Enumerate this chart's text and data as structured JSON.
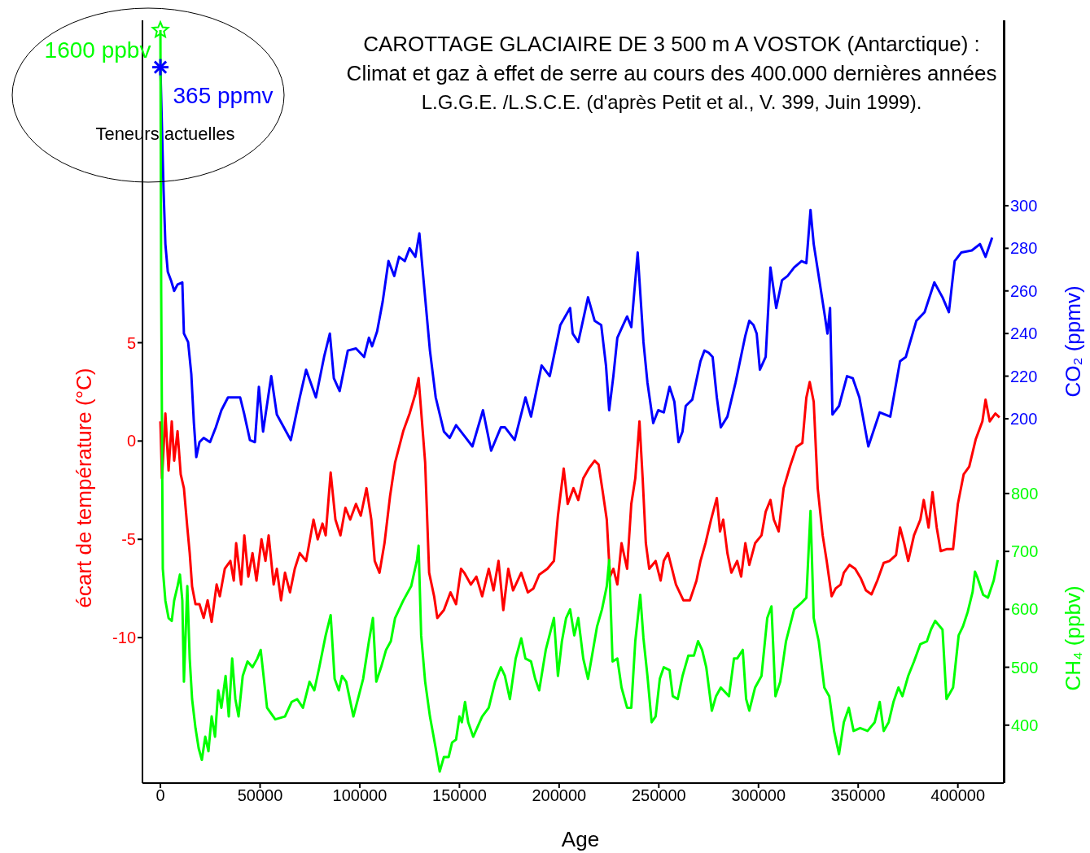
{
  "chart_data": {
    "type": "line",
    "title": "CAROTTAGE GLACIAIRE DE 3 500 m A VOSTOK (Antarctique) :\nClimat et gaz à effet de serre au cours des 400.000 dernières années",
    "subtitle": "L.G.G.E. /L.S.C.E. (d'après Petit et al., V. 399, Juin 1999).",
    "xlabel": "Age",
    "ylabel": "écart de température (°C)",
    "y2label": "CO₂ (ppmv)",
    "y3label": "CH₄ (ppbv)",
    "annotations": [
      "1600 ppbv",
      "365 ppmv",
      "Teneurs actuelles"
    ],
    "xlim": [
      -9000,
      423000
    ],
    "xticks": [
      0,
      50000,
      100000,
      150000,
      200000,
      250000,
      300000,
      350000,
      400000
    ],
    "ylim": [
      -17.4,
      21.4
    ],
    "yticks": [
      -10,
      -5,
      0,
      5
    ],
    "y2lim": [
      29,
      387
    ],
    "y2ticks": [
      200,
      220,
      240,
      260,
      280,
      300
    ],
    "y3lim": [
      300,
      1617
    ],
    "y3ticks": [
      400,
      500,
      600,
      700,
      800
    ],
    "series": [
      {
        "color": "#ff0000",
        "axis": "y",
        "x": [
          0,
          800,
          2500,
          4100,
          5700,
          6900,
          8600,
          10200,
          11800,
          13500,
          14700,
          15900,
          17600,
          19600,
          21700,
          23700,
          25700,
          28200,
          29800,
          32300,
          35100,
          36800,
          38000,
          40500,
          42100,
          44100,
          46200,
          48200,
          50700,
          52700,
          54300,
          56800,
          58400,
          60500,
          62500,
          65000,
          67400,
          69900,
          73100,
          76800,
          78900,
          81300,
          82900,
          85400,
          87800,
          90300,
          92800,
          95200,
          98100,
          100500,
          103400,
          105800,
          107500,
          109900,
          112400,
          115200,
          117700,
          121800,
          125000,
          127900,
          129500,
          131200,
          132800,
          134800,
          137300,
          138900,
          142200,
          145500,
          148300,
          150800,
          152400,
          155700,
          158500,
          161400,
          164700,
          167100,
          169600,
          172000,
          174500,
          176900,
          181000,
          184300,
          187100,
          190000,
          194100,
          197400,
          199400,
          202300,
          204300,
          207200,
          209600,
          212100,
          214900,
          217800,
          219800,
          221900,
          223900,
          225500,
          227200,
          229200,
          231300,
          234100,
          236200,
          238200,
          240300,
          241900,
          243500,
          245200,
          248400,
          250900,
          252500,
          254600,
          256600,
          258600,
          262300,
          265600,
          268900,
          270900,
          273400,
          276200,
          279100,
          280700,
          282300,
          284400,
          286400,
          289300,
          291300,
          293400,
          295400,
          298300,
          301500,
          303600,
          306000,
          307700,
          310100,
          312600,
          315800,
          319100,
          322000,
          324000,
          325700,
          327700,
          329700,
          332200,
          334200,
          336700,
          338700,
          341200,
          342800,
          345700,
          348500,
          351400,
          353900,
          356700,
          359600,
          362800,
          365700,
          369000,
          371000,
          373100,
          375100,
          378000,
          381200,
          382900,
          385300,
          387300,
          389400,
          391400,
          394300,
          397600,
          400000,
          402900,
          405700,
          409000,
          412300,
          413900,
          416000,
          418800,
          420900
        ],
        "values": [
          1.0,
          -1.9,
          1.4,
          -1.5,
          1.0,
          -1.0,
          0.5,
          -1.7,
          -2.4,
          -4.4,
          -5.7,
          -7.4,
          -8.3,
          -8.3,
          -9.0,
          -8.1,
          -9.2,
          -7.3,
          -7.9,
          -6.5,
          -6.1,
          -7.1,
          -5.2,
          -7.3,
          -4.8,
          -6.9,
          -5.7,
          -7.1,
          -5.0,
          -6.1,
          -4.8,
          -7.3,
          -6.5,
          -8.1,
          -6.7,
          -7.7,
          -6.5,
          -5.7,
          -6.1,
          -4.0,
          -5.0,
          -4.2,
          -4.8,
          -1.6,
          -4.0,
          -4.8,
          -3.4,
          -4.0,
          -3.2,
          -3.8,
          -2.4,
          -4.0,
          -6.1,
          -6.7,
          -5.2,
          -2.8,
          -1.1,
          0.5,
          1.4,
          2.4,
          3.2,
          1.0,
          -1.1,
          -6.7,
          -7.9,
          -9.0,
          -8.6,
          -7.7,
          -8.3,
          -6.5,
          -6.7,
          -7.3,
          -6.9,
          -7.9,
          -6.5,
          -7.6,
          -6.1,
          -8.6,
          -6.5,
          -7.6,
          -6.7,
          -7.7,
          -7.5,
          -6.8,
          -6.5,
          -6.1,
          -3.8,
          -1.4,
          -3.2,
          -2.4,
          -3.0,
          -1.9,
          -1.4,
          -1.0,
          -1.2,
          -2.6,
          -4.0,
          -6.9,
          -6.5,
          -7.3,
          -5.2,
          -6.5,
          -3.2,
          -1.9,
          1.0,
          -1.9,
          -5.2,
          -6.5,
          -6.1,
          -7.1,
          -6.1,
          -5.7,
          -6.5,
          -7.3,
          -8.1,
          -8.1,
          -7.1,
          -6.1,
          -5.2,
          -4.0,
          -2.9,
          -4.6,
          -4.0,
          -5.7,
          -6.7,
          -6.1,
          -6.9,
          -5.2,
          -6.3,
          -5.2,
          -4.8,
          -3.6,
          -3.0,
          -4.0,
          -4.6,
          -2.4,
          -1.3,
          -0.3,
          -0.1,
          2.2,
          3.0,
          2.0,
          -2.4,
          -4.8,
          -6.1,
          -7.9,
          -7.5,
          -7.3,
          -6.7,
          -6.3,
          -6.5,
          -7.0,
          -7.6,
          -7.8,
          -7.1,
          -6.2,
          -6.1,
          -5.8,
          -4.4,
          -5.2,
          -6.1,
          -4.8,
          -4.0,
          -3.0,
          -4.4,
          -2.6,
          -4.4,
          -5.6,
          -5.5,
          -5.5,
          -3.2,
          -1.7,
          -1.3,
          0.1,
          1.0,
          2.1,
          1.0,
          1.4,
          1.2
        ]
      },
      {
        "color": "#0000ff",
        "axis": "y2",
        "x": [
          0,
          1600,
          2500,
          3700,
          5300,
          6900,
          8600,
          11000,
          11800,
          13900,
          15500,
          16800,
          18000,
          19600,
          21700,
          24900,
          27800,
          30600,
          33900,
          40000,
          42100,
          44900,
          47400,
          49400,
          51500,
          55600,
          58400,
          65400,
          69900,
          73100,
          78000,
          82100,
          85000,
          87000,
          89900,
          94000,
          98100,
          102200,
          104600,
          106200,
          108700,
          111500,
          114400,
          117300,
          119700,
          122600,
          125000,
          127900,
          129900,
          132000,
          135200,
          138100,
          142200,
          145100,
          148300,
          152400,
          156500,
          161800,
          165900,
          170800,
          172800,
          177700,
          183100,
          185900,
          191200,
          195300,
          200600,
          205500,
          206800,
          209600,
          214500,
          217800,
          221100,
          223500,
          225100,
          227200,
          229200,
          232100,
          234100,
          236200,
          239400,
          242300,
          244300,
          247200,
          249700,
          252500,
          255400,
          257800,
          259900,
          261900,
          263500,
          266800,
          270900,
          272900,
          275000,
          277000,
          279100,
          281100,
          284400,
          288500,
          293400,
          295400,
          297500,
          299100,
          300700,
          303600,
          306000,
          308900,
          311800,
          314600,
          317900,
          321600,
          324000,
          326100,
          327700,
          330200,
          333000,
          334600,
          335900,
          337100,
          340400,
          344400,
          347300,
          350600,
          355100,
          360800,
          366100,
          371000,
          373900,
          379200,
          383300,
          388200,
          392300,
          395500,
          398400,
          401700,
          407000,
          411100,
          413900,
          417200
        ],
        "values": [
          365,
          307,
          282,
          269,
          265,
          260,
          263,
          264,
          240,
          236,
          221,
          198,
          182,
          189,
          191,
          189,
          196,
          204,
          210,
          210,
          202,
          190,
          189,
          215,
          194,
          220,
          202,
          190,
          210,
          223,
          210,
          229,
          240,
          219,
          213,
          232,
          233,
          229,
          238,
          234,
          241,
          255,
          274,
          267,
          276,
          274,
          280,
          276,
          287,
          265,
          232,
          210,
          194,
          191,
          197,
          192,
          187,
          204,
          185,
          196,
          196,
          190,
          210,
          201,
          225,
          220,
          244,
          252,
          240,
          236,
          257,
          246,
          244,
          225,
          204,
          220,
          238,
          244,
          248,
          243,
          278,
          236,
          217,
          198,
          204,
          203,
          215,
          208,
          189,
          194,
          206,
          209,
          227,
          232,
          231,
          229,
          210,
          196,
          201,
          217,
          239,
          246,
          244,
          240,
          223,
          229,
          271,
          252,
          265,
          267,
          271,
          274,
          273,
          298,
          282,
          267,
          250,
          240,
          252,
          202,
          206,
          220,
          219,
          210,
          187,
          203,
          201,
          227,
          229,
          246,
          250,
          264,
          257,
          250,
          274,
          278,
          279,
          282,
          276,
          285
        ]
      },
      {
        "color": "#00ff00",
        "axis": "y3",
        "x": [
          0,
          400,
          1200,
          2500,
          4100,
          5700,
          6900,
          8600,
          9800,
          11000,
          11800,
          13500,
          14700,
          15900,
          17600,
          19200,
          20800,
          22500,
          24100,
          25700,
          27400,
          29000,
          30600,
          32700,
          34300,
          36000,
          37600,
          39200,
          41300,
          43700,
          46200,
          48600,
          50300,
          53500,
          57600,
          62500,
          65800,
          68600,
          71500,
          74800,
          77200,
          79700,
          82900,
          85400,
          87400,
          89500,
          91100,
          93200,
          96800,
          101700,
          104600,
          106600,
          108300,
          110700,
          113200,
          115600,
          117700,
          121800,
          125800,
          128700,
          129500,
          130800,
          132800,
          135200,
          138100,
          140100,
          142200,
          144600,
          146300,
          148300,
          150000,
          151200,
          152800,
          154400,
          156900,
          161400,
          164700,
          167900,
          170800,
          172800,
          175300,
          178200,
          181000,
          183100,
          185900,
          188000,
          190000,
          193300,
          197400,
          199400,
          201400,
          203500,
          205500,
          207600,
          209600,
          212100,
          214500,
          217000,
          219000,
          221500,
          223900,
          225100,
          226800,
          229200,
          231300,
          234100,
          236200,
          238200,
          240700,
          242300,
          244300,
          246400,
          248400,
          250500,
          252500,
          255400,
          257000,
          259500,
          261900,
          264800,
          267600,
          269700,
          271700,
          273800,
          276600,
          278700,
          281100,
          285200,
          287700,
          289300,
          292100,
          293800,
          295400,
          298300,
          301500,
          304400,
          306500,
          308500,
          310900,
          313800,
          317900,
          321200,
          324000,
          326100,
          327700,
          330200,
          333000,
          335500,
          337900,
          340400,
          342800,
          345300,
          347700,
          351000,
          354700,
          358300,
          360800,
          362800,
          365300,
          367700,
          370200,
          372200,
          375100,
          378000,
          381200,
          384500,
          386500,
          388600,
          392300,
          394300,
          397600,
          400400,
          402500,
          404900,
          407400,
          408600,
          409800,
          412700,
          415100,
          418000,
          420000
        ],
        "values": [
          1600,
          1145,
          670,
          615,
          585,
          580,
          615,
          640,
          660,
          615,
          475,
          640,
          515,
          445,
          395,
          360,
          340,
          380,
          355,
          415,
          380,
          460,
          430,
          485,
          415,
          515,
          445,
          415,
          485,
          510,
          500,
          515,
          530,
          430,
          410,
          415,
          440,
          445,
          430,
          475,
          460,
          500,
          555,
          590,
          480,
          460,
          485,
          475,
          415,
          480,
          545,
          585,
          475,
          500,
          530,
          545,
          585,
          615,
          640,
          685,
          710,
          555,
          475,
          415,
          360,
          320,
          345,
          345,
          370,
          375,
          415,
          405,
          440,
          405,
          380,
          415,
          430,
          475,
          500,
          485,
          445,
          515,
          550,
          515,
          510,
          480,
          460,
          530,
          585,
          485,
          545,
          585,
          600,
          555,
          585,
          515,
          480,
          530,
          570,
          600,
          640,
          685,
          510,
          515,
          465,
          430,
          430,
          545,
          625,
          550,
          485,
          405,
          415,
          480,
          500,
          495,
          450,
          445,
          485,
          520,
          520,
          545,
          530,
          500,
          425,
          450,
          465,
          450,
          515,
          515,
          530,
          445,
          425,
          465,
          485,
          585,
          605,
          450,
          475,
          545,
          600,
          610,
          620,
          770,
          585,
          545,
          465,
          450,
          390,
          350,
          405,
          430,
          390,
          395,
          390,
          405,
          440,
          390,
          405,
          440,
          465,
          450,
          485,
          510,
          540,
          545,
          565,
          580,
          565,
          445,
          465,
          555,
          570,
          595,
          630,
          665,
          655,
          625,
          620,
          650,
          685
        ]
      }
    ]
  }
}
